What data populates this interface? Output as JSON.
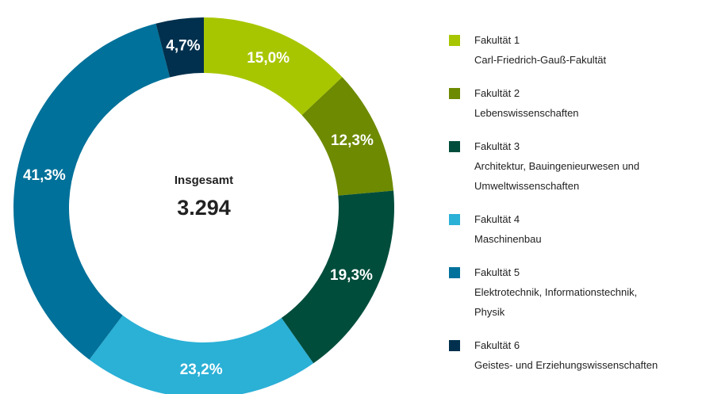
{
  "chart_data": {
    "type": "donut",
    "categories": [
      "Fakultät 1",
      "Fakultät 2",
      "Fakultät 3",
      "Fakultät 4",
      "Fakultät 5",
      "Fakultät 6"
    ],
    "descriptions": [
      [
        "Carl-Friedrich-Gauß-Fakultät"
      ],
      [
        "Lebenswissenschaften"
      ],
      [
        "Architektur, Bauingenieurwesen und",
        "Umweltwissenschaften"
      ],
      [
        "Maschinenbau"
      ],
      [
        "Elektrotechnik, Informationstechnik,",
        "Physik"
      ],
      [
        "Geistes- und Erziehungswissenschaften"
      ]
    ],
    "values": [
      15.0,
      12.3,
      19.3,
      23.2,
      41.3,
      4.7
    ],
    "value_labels": [
      "15,0%",
      "12,3%",
      "19,3%",
      "23,2%",
      "41,3%",
      "4,7%"
    ],
    "colors": [
      "#a8c600",
      "#6d8a00",
      "#004d3c",
      "#2bb0d6",
      "#00719a",
      "#00304d"
    ],
    "total_title": "Insgesamt",
    "total": {
      "value": 3294,
      "label": "3.294"
    },
    "legend": "right"
  }
}
